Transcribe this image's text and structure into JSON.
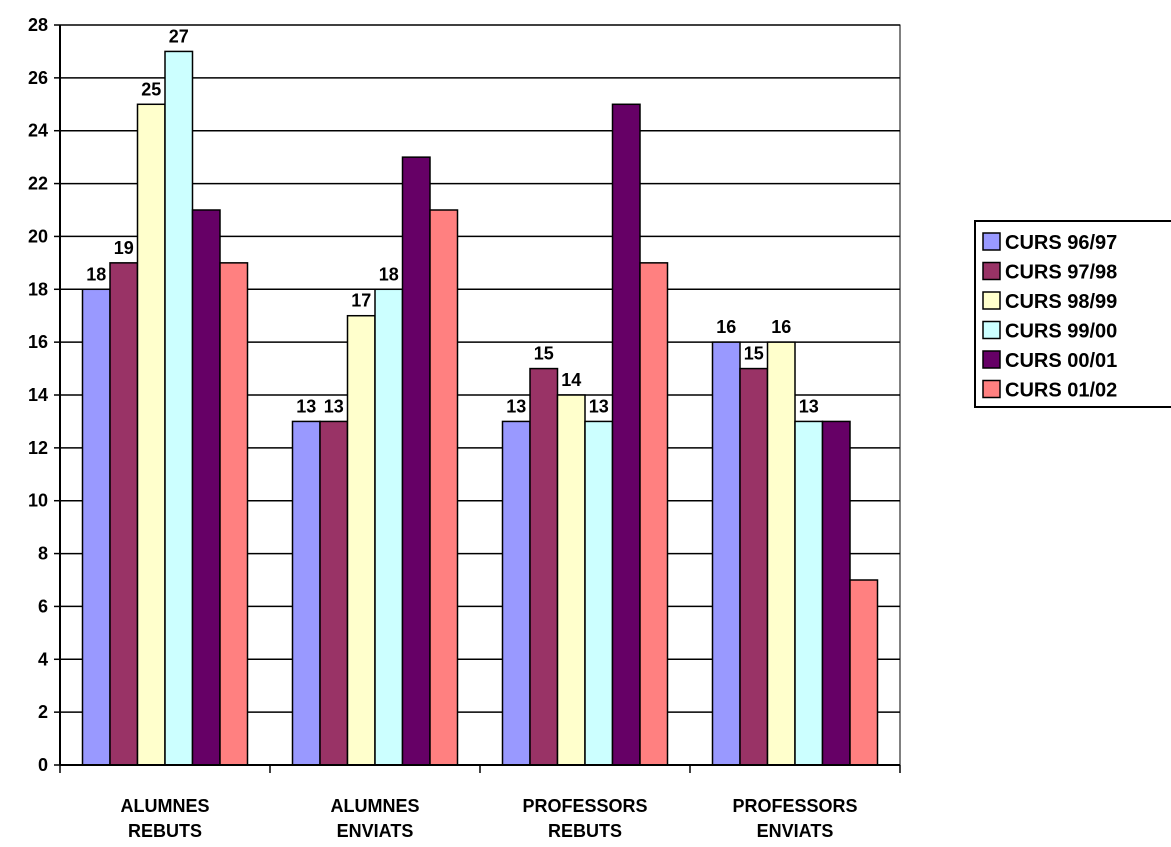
{
  "chart_data": {
    "type": "bar",
    "title": "",
    "xlabel": "",
    "ylabel": "",
    "ylim": [
      0,
      28
    ],
    "yticks": [
      0,
      2,
      4,
      6,
      8,
      10,
      12,
      14,
      16,
      18,
      20,
      22,
      24,
      26,
      28
    ],
    "grid": true,
    "legend_position": "right",
    "categories": [
      [
        "ALUMNES",
        "REBUTS"
      ],
      [
        "ALUMNES",
        "ENVIATS"
      ],
      [
        "PROFESSORS",
        "REBUTS"
      ],
      [
        "PROFESSORS",
        "ENVIATS"
      ]
    ],
    "series": [
      {
        "name": "CURS 96/97",
        "color": "#9999FF",
        "values": [
          18,
          13,
          13,
          16
        ]
      },
      {
        "name": "CURS 97/98",
        "color": "#993366",
        "values": [
          19,
          13,
          15,
          15
        ]
      },
      {
        "name": "CURS 98/99",
        "color": "#FFFFCC",
        "values": [
          25,
          17,
          14,
          16
        ]
      },
      {
        "name": "CURS 99/00",
        "color": "#CCFFFF",
        "values": [
          27,
          18,
          13,
          13
        ]
      },
      {
        "name": "CURS 00/01",
        "color": "#660066",
        "values": [
          21,
          23,
          25,
          13
        ]
      },
      {
        "name": "CURS 01/02",
        "color": "#FF8080",
        "values": [
          19,
          21,
          19,
          7
        ]
      }
    ],
    "data_labels": [
      [
        18,
        19,
        25,
        27,
        null,
        null
      ],
      [
        13,
        13,
        17,
        18,
        null,
        null
      ],
      [
        13,
        15,
        14,
        13,
        null,
        null
      ],
      [
        16,
        15,
        16,
        13,
        null,
        null
      ]
    ]
  }
}
